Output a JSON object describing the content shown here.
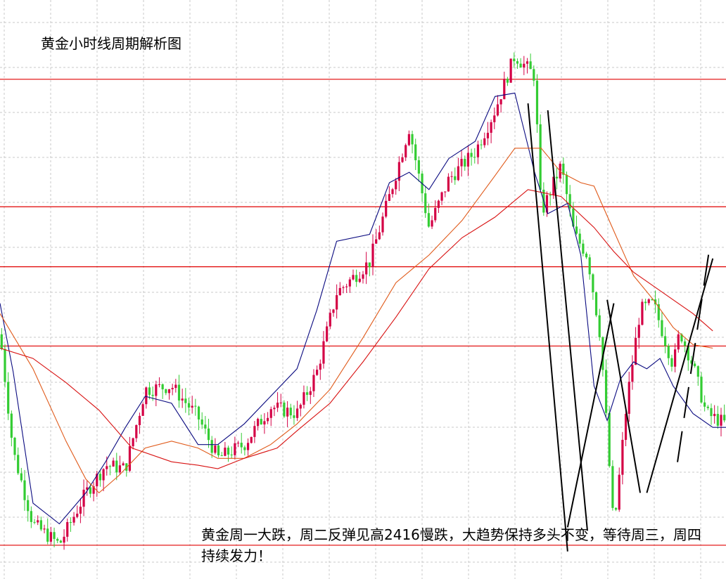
{
  "chart_data": {
    "type": "candlestick",
    "title": "黄金小时线周期解析图",
    "annotation": "黄金周一大跌，周二反弹见高2416慢跌，大趋势保持多头不变，等待周三，周四持续发力！",
    "y_range": [
      2352.0,
      2436.0
    ],
    "x_range": [
      0,
      110
    ],
    "grid": true,
    "colors": {
      "up_candle": "#d40045",
      "down_candle": "#33cc33",
      "ma_fast": "#0a0a80",
      "ma_mid": "#e05a1a",
      "ma_slow": "#d81010",
      "support_resistance": "#e00000",
      "trend_lines": "#000000",
      "grid": "#c8c8c8"
    },
    "horizontal_levels": [
      2424.5,
      2406.0,
      2397.3,
      2385.8,
      2356.9
    ],
    "candle_knots": [
      [
        0,
        2387.5
      ],
      [
        2,
        2370.5
      ],
      [
        5,
        2360.0
      ],
      [
        9,
        2357.0
      ],
      [
        13,
        2364.5
      ],
      [
        16,
        2368.5
      ],
      [
        19,
        2368.0
      ],
      [
        22,
        2379.5
      ],
      [
        26,
        2380.0
      ],
      [
        30,
        2375.5
      ],
      [
        33,
        2369.5
      ],
      [
        37,
        2371.5
      ],
      [
        41,
        2377.0
      ],
      [
        45,
        2376.0
      ],
      [
        48,
        2382.0
      ],
      [
        51,
        2393.5
      ],
      [
        56,
        2398.0
      ],
      [
        59,
        2407.5
      ],
      [
        62,
        2417.5
      ],
      [
        65,
        2403.0
      ],
      [
        68,
        2410.0
      ],
      [
        72,
        2414.0
      ],
      [
        75,
        2420.0
      ],
      [
        78,
        2428.0
      ],
      [
        81,
        2425.0
      ],
      [
        82,
        2405.0
      ],
      [
        85,
        2412.0
      ],
      [
        87,
        2402.0
      ],
      [
        89,
        2399.0
      ],
      [
        91,
        2387.0
      ],
      [
        93,
        2359.0
      ],
      [
        95,
        2378.0
      ],
      [
        97,
        2391.0
      ],
      [
        99,
        2392.0
      ],
      [
        102,
        2383.0
      ],
      [
        103,
        2388.0
      ],
      [
        105,
        2383.0
      ],
      [
        107,
        2376.0
      ],
      [
        110,
        2374.5
      ]
    ],
    "candle_count": 221,
    "series": [
      {
        "x": [
          0,
          2,
          5,
          9,
          13,
          16,
          19,
          22,
          26,
          30,
          33,
          37,
          41,
          45,
          48,
          51,
          56,
          59,
          62,
          65,
          68,
          72,
          75,
          78,
          81,
          83,
          86,
          88,
          90,
          92,
          94,
          96,
          98,
          100,
          102,
          105,
          108,
          110
        ],
        "y": [
          2392.0,
          2382.0,
          2363.0,
          2360.0,
          2364.5,
          2369.0,
          2374.0,
          2378.5,
          2377.5,
          2371.5,
          2371.5,
          2374.5,
          2378.5,
          2382.5,
          2391.0,
          2401.0,
          2402.0,
          2409.5,
          2411.0,
          2408.5,
          2413.0,
          2415.5,
          2422.0,
          2422.5,
          2411.0,
          2405.0,
          2406.5,
          2399.0,
          2380.0,
          2375.0,
          2381.0,
          2383.5,
          2382.5,
          2384.0,
          2380.0,
          2376.0,
          2374.0,
          2374.0
        ]
      },
      {
        "x": [
          0,
          5,
          10,
          13,
          15,
          18,
          22,
          26,
          30,
          33,
          37,
          41,
          45,
          50,
          55,
          60,
          65,
          70,
          75,
          78,
          82,
          85,
          88,
          90,
          93,
          96,
          99,
          102,
          105,
          108
        ],
        "y": [
          2390.5,
          2382.5,
          2372.0,
          2366.5,
          2364.5,
          2367.0,
          2371.0,
          2372.0,
          2371.0,
          2369.5,
          2369.5,
          2371.5,
          2374.5,
          2379.5,
          2387.0,
          2395.0,
          2399.0,
          2404.0,
          2410.5,
          2414.5,
          2414.5,
          2411.0,
          2409.5,
          2409.0,
          2402.5,
          2396.0,
          2392.5,
          2388.5,
          2386.0,
          2385.5
        ]
      },
      {
        "x": [
          0,
          5,
          10,
          15,
          20,
          26,
          30,
          33,
          37,
          42,
          45,
          50,
          55,
          60,
          65,
          70,
          75,
          80,
          85,
          90,
          93,
          96,
          99,
          102,
          105,
          108
        ],
        "y": [
          2385.5,
          2384.0,
          2380.5,
          2376.5,
          2371.0,
          2369.0,
          2368.5,
          2368.0,
          2369.5,
          2371.0,
          2373.5,
          2377.5,
          2383.5,
          2390.0,
          2397.0,
          2401.5,
          2404.5,
          2408.5,
          2407.5,
          2403.0,
          2399.5,
          2396.5,
          2394.5,
          2392.5,
          2390.5,
          2388.0
        ]
      }
    ],
    "trend_lines": [
      [
        [
          80,
          2421.0
        ],
        [
          86,
          2356.0
        ]
      ],
      [
        [
          83,
          2420.0
        ],
        [
          89,
          2359.0
        ]
      ],
      [
        [
          86,
          2359.5
        ],
        [
          93,
          2392.0
        ]
      ],
      [
        [
          92,
          2392.5
        ],
        [
          97,
          2364.5
        ]
      ],
      [
        [
          98,
          2364.5
        ],
        [
          108,
          2398.5
        ]
      ]
    ]
  }
}
